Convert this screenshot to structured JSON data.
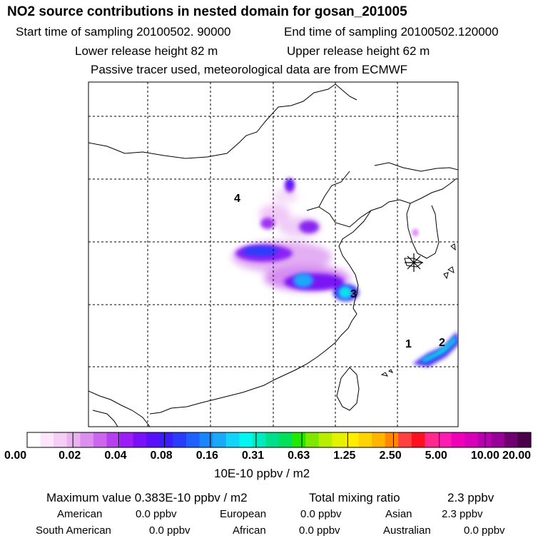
{
  "header": {
    "title": "NO2 source contributions in nested domain for gosan_201005",
    "start_label": "Start time of sampling 20100502. 90000",
    "end_label": "End time of sampling 20100502.120000",
    "lower_label": "Lower release height   82 m",
    "upper_label": "Upper release height   62 m",
    "note": "Passive tracer used, meteorological data are from ECMWF"
  },
  "colors": {
    "scale": [
      "#ffffff",
      "#fbe6fb",
      "#f5cdf5",
      "#eab3f0",
      "#dd8ff0",
      "#cc66ee",
      "#b640f0",
      "#9a1ef5",
      "#7a10f8",
      "#5a0ffa",
      "#3c1cfb",
      "#2a3cfb",
      "#1e60fb",
      "#1a86fb",
      "#1aa8fb",
      "#10d4f8",
      "#00f6f0",
      "#00ecc0",
      "#00e08a",
      "#00e058",
      "#22e800",
      "#7ee800",
      "#b8ee00",
      "#e4f200",
      "#ffee00",
      "#ffd400",
      "#ffb400",
      "#ff8800",
      "#ff4040",
      "#ff1020",
      "#ff2a8a",
      "#ff1ab0",
      "#f000b8",
      "#d800b8",
      "#b800b0",
      "#980098",
      "#700070",
      "#4a004a"
    ]
  },
  "chart_data": {
    "type": "heatmap",
    "title": "NO2 source contributions in nested domain for gosan_201005",
    "colorbar": {
      "tick_labels": [
        "0.00",
        "0.02",
        "0.04",
        "0.08",
        "0.16",
        "0.31",
        "0.63",
        "1.25",
        "2.50",
        "5.00",
        "10.00",
        "20.00"
      ],
      "unit_label": "10E-10 ppbv / m2"
    },
    "source_labels": [
      "4",
      "3",
      "1",
      "2"
    ],
    "receptor_symbol": "gosan"
  },
  "footer": {
    "max_label": "Maximum value  0.383E-10 ppbv / m2",
    "total_label": "Total mixing ratio",
    "total_value": "2.3 ppbv",
    "regions": [
      {
        "name": "American",
        "value": "0.0 ppbv"
      },
      {
        "name": "European",
        "value": "0.0 ppbv"
      },
      {
        "name": "Asian",
        "value": "2.3 ppbv"
      },
      {
        "name": "South American",
        "value": "0.0 ppbv"
      },
      {
        "name": "African",
        "value": "0.0 ppbv"
      },
      {
        "name": "Australian",
        "value": "0.0 ppbv"
      }
    ]
  }
}
